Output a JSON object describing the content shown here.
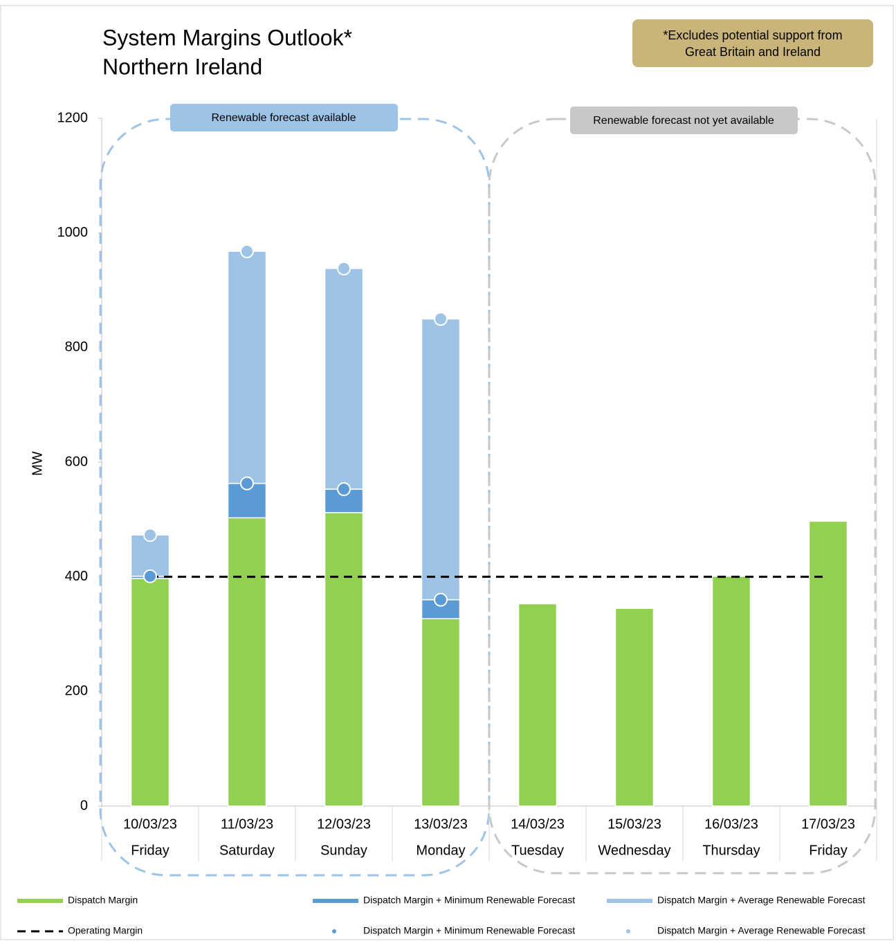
{
  "chart_data": {
    "type": "bar",
    "title": "System Margins Outlook*",
    "subtitle": "Northern Ireland",
    "note": "*Excludes potential support from Great Britain and Ireland",
    "annotations": [
      "Renewable forecast available",
      "Renewable forecast not yet available"
    ],
    "y_label": "MW",
    "categories": [
      "10/03/23",
      "11/03/23",
      "12/03/23",
      "13/03/23",
      "14/03/23",
      "15/03/23",
      "16/03/23",
      "17/03/23"
    ],
    "x_sublabels": [
      "Friday",
      "Saturday",
      "Sunday",
      "Monday",
      "Tuesday",
      "Wednesday",
      "Thursday",
      "Friday"
    ],
    "ylim": [
      0,
      1200
    ],
    "yticks": [
      0,
      200,
      400,
      600,
      800,
      1000,
      1200
    ],
    "grid": false,
    "series": [
      {
        "name": "Dispatch Margin",
        "kind": "stack",
        "color": "#92d050",
        "values": [
          397,
          503,
          512,
          327,
          353,
          345,
          401,
          497
        ]
      },
      {
        "name": "Dispatch Margin + Minimum Renewable Forecast",
        "kind": "stack",
        "color": "#5b9bd5",
        "values": [
          4,
          60,
          41,
          33,
          null,
          null,
          null,
          null
        ]
      },
      {
        "name": "Dispatch Margin + Average Renewable Forecast",
        "kind": "stack",
        "color": "#9dc3e6",
        "values": [
          72,
          405,
          385,
          490,
          null,
          null,
          null,
          null
        ]
      },
      {
        "name": "Operating Margin",
        "kind": "line",
        "color": "#000000",
        "values": [
          400,
          400,
          400,
          400,
          400,
          400,
          400,
          400
        ]
      },
      {
        "name": "Dispatch Margin + Minimum Renewable Forecast",
        "kind": "scatter",
        "color": "#5b9bd5",
        "values": [
          401,
          563,
          553,
          360,
          null,
          null,
          null,
          null
        ]
      },
      {
        "name": "Dispatch Margin + Average Renewable Forecast",
        "kind": "scatter",
        "color": "#9dc3e6",
        "values": [
          473,
          968,
          938,
          850,
          null,
          null,
          null,
          null
        ]
      }
    ]
  }
}
